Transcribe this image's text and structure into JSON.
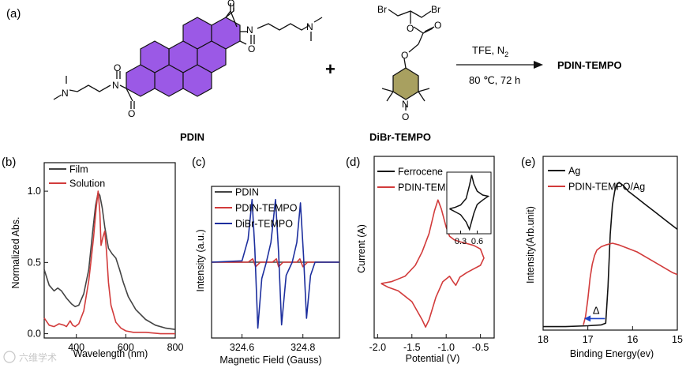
{
  "scheme": {
    "panel_label": "(a)",
    "reactant1": "PDIN",
    "reactant2": "DiBr-TEMPO",
    "plus": "+",
    "conditions_top": "TFE, N",
    "conditions_top_sub": "2",
    "conditions_bottom": "80 ℃, 72 h",
    "product": "PDIN-TEMPO",
    "atoms": {
      "N": "N",
      "O": "O",
      "Br": "Br"
    }
  },
  "watermark": "六维学术",
  "colors": {
    "perylene": "#9b59e6",
    "piperidine": "#a8a060",
    "black": "#111111",
    "red": "#d23b3b",
    "blue": "#1d2f9e",
    "arrow_blue": "#1d44c8"
  },
  "chart_data": [
    {
      "panel": "(b)",
      "type": "line",
      "xlabel": "Wavelength (nm)",
      "ylabel": "Normalized Abs.",
      "xlim": [
        270,
        800
      ],
      "ylim": [
        -0.03,
        1.2
      ],
      "xticks": [
        400,
        600,
        800
      ],
      "yticks": [
        0.0,
        0.5,
        1.0
      ],
      "ytick_labels": [
        "0.0",
        "0.5",
        "1.0"
      ],
      "legend": "top-left",
      "series": [
        {
          "name": "Film",
          "color": "#444444",
          "x": [
            270,
            290,
            310,
            325,
            340,
            360,
            380,
            395,
            410,
            430,
            450,
            465,
            478,
            488,
            495,
            505,
            515,
            530,
            545,
            560,
            575,
            590,
            610,
            640,
            680,
            720,
            760,
            800
          ],
          "y": [
            0.45,
            0.34,
            0.3,
            0.32,
            0.3,
            0.25,
            0.21,
            0.19,
            0.2,
            0.28,
            0.45,
            0.7,
            0.9,
            0.99,
            0.97,
            0.88,
            0.75,
            0.6,
            0.56,
            0.53,
            0.45,
            0.36,
            0.26,
            0.17,
            0.1,
            0.06,
            0.04,
            0.03
          ]
        },
        {
          "name": "Solution",
          "color": "#d23b3b",
          "x": [
            270,
            290,
            310,
            330,
            350,
            360,
            375,
            385,
            395,
            410,
            430,
            450,
            460,
            470,
            480,
            488,
            495,
            500,
            508,
            515,
            522,
            530,
            540,
            560,
            580,
            600,
            630,
            680,
            740,
            800
          ],
          "y": [
            0.11,
            0.06,
            0.05,
            0.07,
            0.06,
            0.05,
            0.09,
            0.06,
            0.05,
            0.07,
            0.16,
            0.37,
            0.52,
            0.68,
            0.88,
            1.0,
            0.85,
            0.62,
            0.68,
            0.72,
            0.58,
            0.36,
            0.2,
            0.08,
            0.04,
            0.02,
            0.01,
            0.01,
            0.0,
            0.0
          ]
        }
      ]
    },
    {
      "panel": "(c)",
      "type": "line",
      "xlabel": "Magnetic Field (Gauss)",
      "ylabel": "Intensity (a.u.)",
      "xlim": [
        324.5,
        324.92
      ],
      "ylim": [
        -1.15,
        1.15
      ],
      "xticks": [
        324.6,
        324.8
      ],
      "legend": "top-left",
      "series": [
        {
          "name": "PDIN",
          "color": "#444444",
          "x": [
            324.5,
            324.92
          ],
          "y": [
            0.0,
            0.0
          ]
        },
        {
          "name": "PDIN-TEMPO",
          "color": "#d23b3b",
          "x": [
            324.5,
            324.62,
            324.635,
            324.645,
            324.66,
            324.7,
            324.713,
            324.72,
            324.735,
            324.78,
            324.79,
            324.8,
            324.815,
            324.92
          ],
          "y": [
            0.0,
            0.0,
            0.05,
            -0.07,
            0.0,
            0.0,
            0.05,
            -0.07,
            0.0,
            0.0,
            0.05,
            -0.07,
            0.0,
            0.0
          ]
        },
        {
          "name": "DiBr-TEMPO",
          "color": "#1d2f9e",
          "x": [
            324.5,
            324.6,
            324.62,
            324.633,
            324.642,
            324.652,
            324.665,
            324.68,
            324.695,
            324.71,
            324.72,
            324.73,
            324.745,
            324.765,
            324.78,
            324.792,
            324.802,
            324.812,
            324.825,
            324.84,
            324.92
          ],
          "y": [
            0.0,
            0.02,
            0.35,
            0.95,
            0.2,
            -1.0,
            -0.25,
            0.0,
            0.3,
            0.95,
            0.15,
            -0.95,
            -0.2,
            0.0,
            0.3,
            0.9,
            0.1,
            -0.85,
            -0.2,
            0.0,
            0.0
          ]
        }
      ]
    },
    {
      "panel": "(d)",
      "type": "line",
      "xlabel": "Potential (V)",
      "ylabel": "Current (A)",
      "xlim": [
        -2.05,
        -0.3
      ],
      "ylim": [
        -1.0,
        1.0
      ],
      "xticks": [
        -2.0,
        -1.5,
        -1.0,
        -0.5
      ],
      "xtick_labels": [
        "-2.0",
        "-1.5",
        "-1.0",
        "-0.5"
      ],
      "legend": "top-left",
      "series": [
        {
          "name": "Ferrocene",
          "color": "#111111",
          "x": [],
          "y": []
        },
        {
          "name": "PDIN-TEMPO",
          "color": "#d23b3b",
          "x": [
            -1.95,
            -1.8,
            -1.6,
            -1.45,
            -1.35,
            -1.25,
            -1.17,
            -1.12,
            -1.07,
            -1.0,
            -0.95,
            -0.88,
            -0.8,
            -0.7,
            -0.6,
            -0.5,
            -0.45,
            -0.5,
            -0.6,
            -0.7,
            -0.8,
            -0.86,
            -0.9,
            -0.95,
            -1.05,
            -1.15,
            -1.25,
            -1.3,
            -1.35,
            -1.5,
            -1.7,
            -1.85,
            -1.95
          ],
          "y": [
            -0.4,
            -0.38,
            -0.32,
            -0.2,
            -0.05,
            0.15,
            0.4,
            0.52,
            0.42,
            0.22,
            0.12,
            0.08,
            0.06,
            0.04,
            0.02,
            -0.02,
            -0.12,
            -0.2,
            -0.24,
            -0.28,
            -0.33,
            -0.42,
            -0.38,
            -0.32,
            -0.38,
            -0.55,
            -0.8,
            -0.88,
            -0.8,
            -0.6,
            -0.48,
            -0.44,
            -0.4
          ]
        }
      ],
      "inset": {
        "xticks": [
          0.3,
          0.6
        ],
        "xtick_labels": [
          "0.3",
          "0.6"
        ],
        "xlim": [
          0.05,
          0.85
        ],
        "ylim": [
          -1.0,
          1.1
        ],
        "series": [
          {
            "name": "Ferrocene",
            "color": "#111111",
            "x": [
              0.1,
              0.2,
              0.3,
              0.4,
              0.46,
              0.5,
              0.54,
              0.6,
              0.7,
              0.8,
              0.7,
              0.6,
              0.54,
              0.46,
              0.4,
              0.3,
              0.2,
              0.1
            ],
            "y": [
              -0.15,
              -0.1,
              -0.02,
              0.2,
              0.65,
              1.0,
              0.7,
              0.45,
              0.32,
              0.28,
              0.15,
              0.0,
              -0.3,
              -0.85,
              -0.6,
              -0.35,
              -0.25,
              -0.15
            ]
          }
        ]
      }
    },
    {
      "panel": "(e)",
      "type": "line",
      "xlabel": "Binding Energy(ev)",
      "ylabel": "Intensity(Arb.unit)",
      "xlim": [
        18,
        15
      ],
      "ylim": [
        0,
        1.0
      ],
      "xticks": [
        18,
        17,
        16,
        15
      ],
      "legend": "top-left",
      "annotation": "Δ",
      "series": [
        {
          "name": "Ag",
          "color": "#111111",
          "x": [
            18.0,
            17.5,
            17.0,
            16.7,
            16.6,
            16.55,
            16.5,
            16.45,
            16.4,
            16.35,
            16.3,
            16.2,
            16.1,
            15.9,
            15.7,
            15.5,
            15.3,
            15.1,
            15.0
          ],
          "y": [
            0.02,
            0.02,
            0.025,
            0.03,
            0.04,
            0.25,
            0.55,
            0.72,
            0.8,
            0.84,
            0.85,
            0.83,
            0.8,
            0.76,
            0.72,
            0.68,
            0.64,
            0.6,
            0.58
          ]
        },
        {
          "name": "PDIN-TEMPO/Ag",
          "color": "#d23b3b",
          "x": [
            17.1,
            17.05,
            17.0,
            16.95,
            16.9,
            16.85,
            16.8,
            16.7,
            16.6,
            16.45,
            16.3,
            16.1,
            15.9,
            15.7,
            15.5,
            15.3,
            15.1,
            15.0
          ],
          "y": [
            0.03,
            0.08,
            0.18,
            0.3,
            0.38,
            0.43,
            0.46,
            0.48,
            0.49,
            0.5,
            0.49,
            0.47,
            0.45,
            0.42,
            0.39,
            0.36,
            0.33,
            0.32
          ]
        }
      ]
    }
  ]
}
